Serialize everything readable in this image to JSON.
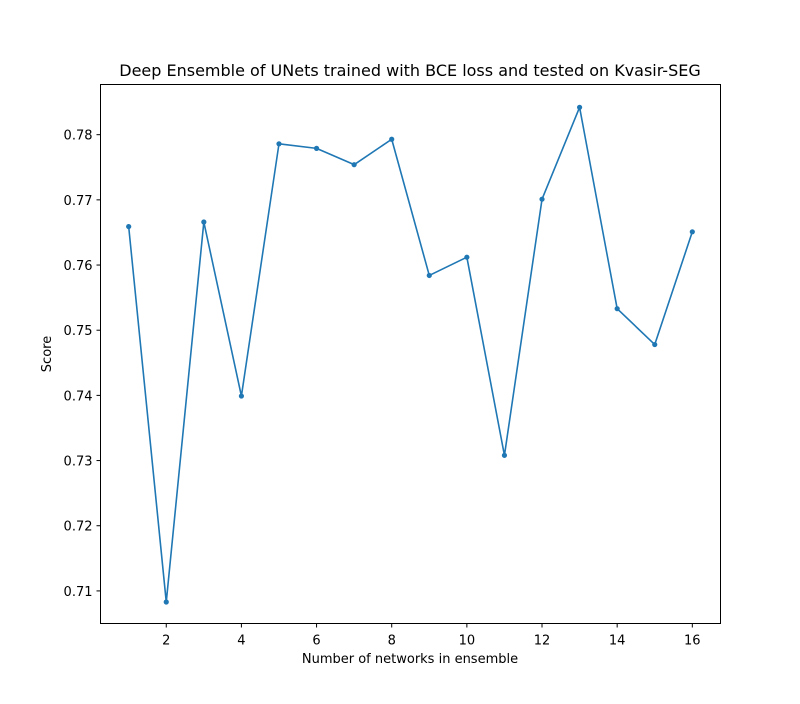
{
  "chart_data": {
    "type": "line",
    "title": "Deep Ensemble of UNets trained with BCE loss and tested on Kvasir-SEG",
    "xlabel": "Number of networks in ensemble",
    "ylabel": "Score",
    "x": [
      1,
      2,
      3,
      4,
      5,
      6,
      7,
      8,
      9,
      10,
      11,
      12,
      13,
      14,
      15,
      16
    ],
    "series": [
      {
        "values": [
          0.7659,
          0.7083,
          0.7666,
          0.7399,
          0.7786,
          0.7779,
          0.7754,
          0.7793,
          0.7584,
          0.7612,
          0.7308,
          0.7701,
          0.7842,
          0.7533,
          0.7478,
          0.7651
        ],
        "color": "#1f77b4",
        "marker": "circle"
      }
    ],
    "xlim": [
      0.25,
      16.75
    ],
    "ylim": [
      0.705,
      0.7877
    ],
    "xticks": [
      2,
      4,
      6,
      8,
      10,
      12,
      14,
      16
    ],
    "yticks": [
      0.71,
      0.72,
      0.73,
      0.74,
      0.75,
      0.76,
      0.77,
      0.78
    ],
    "grid": false
  }
}
